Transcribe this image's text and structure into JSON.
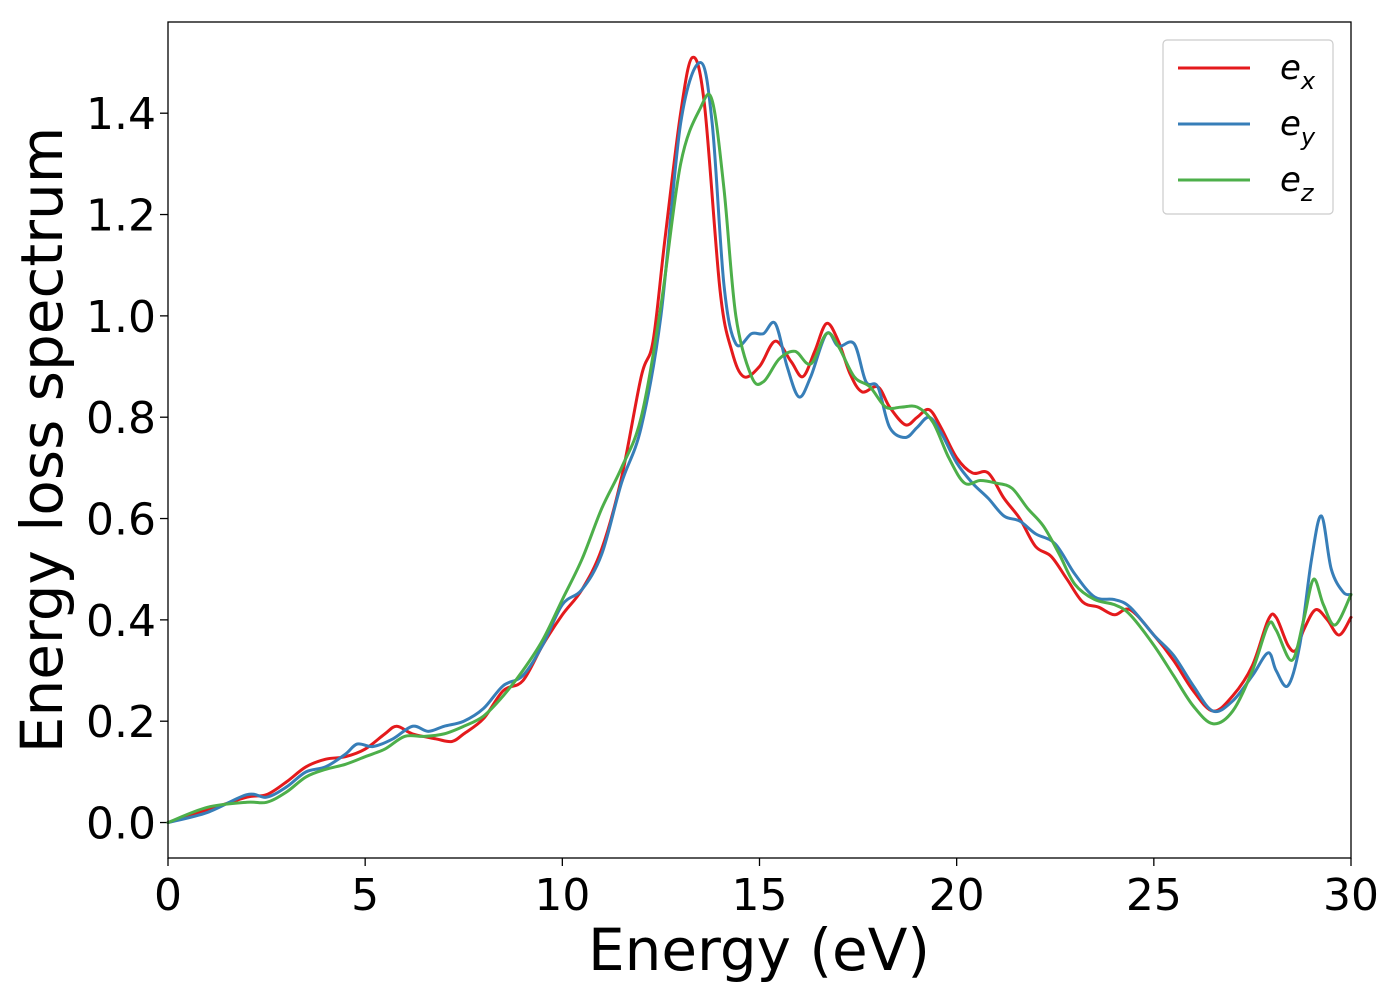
{
  "chart_data": {
    "type": "line",
    "xlabel": "Energy (eV)",
    "ylabel": "Energy loss spectrum",
    "xlim": [
      0,
      30
    ],
    "ylim": [
      -0.07,
      1.58
    ],
    "xticks": [
      0,
      5,
      10,
      15,
      20,
      25,
      30
    ],
    "xtick_labels": [
      "0",
      "5",
      "10",
      "15",
      "20",
      "25",
      "30"
    ],
    "yticks": [
      0.0,
      0.2,
      0.4,
      0.6,
      0.8,
      1.0,
      1.2,
      1.4
    ],
    "ytick_labels": [
      "0.0",
      "0.2",
      "0.4",
      "0.6",
      "0.8",
      "1.0",
      "1.2",
      "1.4"
    ],
    "grid": false,
    "legend_position": "top-right",
    "series": [
      {
        "name": "e_x",
        "label_base": "e",
        "label_sub": "x",
        "color": "#e41a1c",
        "points": [
          [
            0,
            0.0
          ],
          [
            1,
            0.025
          ],
          [
            2,
            0.05
          ],
          [
            2.5,
            0.055
          ],
          [
            3,
            0.08
          ],
          [
            3.5,
            0.11
          ],
          [
            4,
            0.125
          ],
          [
            4.5,
            0.13
          ],
          [
            5,
            0.145
          ],
          [
            5.5,
            0.175
          ],
          [
            5.8,
            0.19
          ],
          [
            6.2,
            0.175
          ],
          [
            6.8,
            0.165
          ],
          [
            7.2,
            0.16
          ],
          [
            7.5,
            0.175
          ],
          [
            8,
            0.205
          ],
          [
            8.5,
            0.26
          ],
          [
            9,
            0.28
          ],
          [
            9.5,
            0.35
          ],
          [
            10,
            0.41
          ],
          [
            10.5,
            0.46
          ],
          [
            11,
            0.54
          ],
          [
            11.5,
            0.68
          ],
          [
            12,
            0.88
          ],
          [
            12.3,
            0.95
          ],
          [
            12.6,
            1.15
          ],
          [
            13,
            1.4
          ],
          [
            13.3,
            1.51
          ],
          [
            13.6,
            1.42
          ],
          [
            14,
            1.05
          ],
          [
            14.3,
            0.93
          ],
          [
            14.6,
            0.88
          ],
          [
            15,
            0.9
          ],
          [
            15.4,
            0.95
          ],
          [
            15.8,
            0.91
          ],
          [
            16.1,
            0.88
          ],
          [
            16.4,
            0.93
          ],
          [
            16.7,
            0.985
          ],
          [
            17,
            0.95
          ],
          [
            17.3,
            0.885
          ],
          [
            17.6,
            0.85
          ],
          [
            18,
            0.86
          ],
          [
            18.3,
            0.82
          ],
          [
            18.7,
            0.785
          ],
          [
            19,
            0.8
          ],
          [
            19.3,
            0.815
          ],
          [
            19.6,
            0.78
          ],
          [
            20,
            0.72
          ],
          [
            20.4,
            0.69
          ],
          [
            20.8,
            0.69
          ],
          [
            21.2,
            0.64
          ],
          [
            21.6,
            0.6
          ],
          [
            22,
            0.545
          ],
          [
            22.4,
            0.525
          ],
          [
            22.8,
            0.48
          ],
          [
            23.2,
            0.435
          ],
          [
            23.6,
            0.425
          ],
          [
            24,
            0.41
          ],
          [
            24.4,
            0.42
          ],
          [
            25,
            0.37
          ],
          [
            25.5,
            0.32
          ],
          [
            26,
            0.26
          ],
          [
            26.5,
            0.22
          ],
          [
            27,
            0.25
          ],
          [
            27.5,
            0.31
          ],
          [
            27.9,
            0.4
          ],
          [
            28.1,
            0.405
          ],
          [
            28.4,
            0.35
          ],
          [
            28.6,
            0.34
          ],
          [
            28.8,
            0.38
          ],
          [
            29.1,
            0.42
          ],
          [
            29.4,
            0.4
          ],
          [
            29.7,
            0.37
          ],
          [
            30,
            0.405
          ]
        ]
      },
      {
        "name": "e_y",
        "label_base": "e",
        "label_sub": "y",
        "color": "#377eb8",
        "points": [
          [
            0,
            0.0
          ],
          [
            1,
            0.02
          ],
          [
            2,
            0.055
          ],
          [
            2.5,
            0.05
          ],
          [
            3,
            0.07
          ],
          [
            3.5,
            0.1
          ],
          [
            4,
            0.11
          ],
          [
            4.5,
            0.135
          ],
          [
            4.8,
            0.155
          ],
          [
            5.2,
            0.15
          ],
          [
            5.7,
            0.165
          ],
          [
            6.2,
            0.19
          ],
          [
            6.6,
            0.18
          ],
          [
            7,
            0.19
          ],
          [
            7.5,
            0.2
          ],
          [
            8,
            0.225
          ],
          [
            8.5,
            0.27
          ],
          [
            9,
            0.29
          ],
          [
            9.5,
            0.35
          ],
          [
            10,
            0.43
          ],
          [
            10.5,
            0.46
          ],
          [
            11,
            0.53
          ],
          [
            11.5,
            0.67
          ],
          [
            12,
            0.78
          ],
          [
            12.5,
            1.0
          ],
          [
            13,
            1.38
          ],
          [
            13.5,
            1.5
          ],
          [
            13.8,
            1.38
          ],
          [
            14.1,
            1.06
          ],
          [
            14.4,
            0.945
          ],
          [
            14.8,
            0.965
          ],
          [
            15.1,
            0.965
          ],
          [
            15.4,
            0.985
          ],
          [
            15.7,
            0.9
          ],
          [
            16,
            0.84
          ],
          [
            16.3,
            0.88
          ],
          [
            16.7,
            0.965
          ],
          [
            17,
            0.94
          ],
          [
            17.4,
            0.945
          ],
          [
            17.7,
            0.87
          ],
          [
            18,
            0.86
          ],
          [
            18.3,
            0.78
          ],
          [
            18.7,
            0.76
          ],
          [
            19,
            0.78
          ],
          [
            19.3,
            0.8
          ],
          [
            19.6,
            0.77
          ],
          [
            20,
            0.71
          ],
          [
            20.4,
            0.67
          ],
          [
            20.8,
            0.64
          ],
          [
            21.2,
            0.605
          ],
          [
            21.6,
            0.595
          ],
          [
            22,
            0.57
          ],
          [
            22.5,
            0.55
          ],
          [
            23,
            0.49
          ],
          [
            23.5,
            0.445
          ],
          [
            24,
            0.44
          ],
          [
            24.4,
            0.425
          ],
          [
            25,
            0.37
          ],
          [
            25.5,
            0.33
          ],
          [
            26,
            0.27
          ],
          [
            26.5,
            0.22
          ],
          [
            27,
            0.24
          ],
          [
            27.5,
            0.29
          ],
          [
            27.9,
            0.335
          ],
          [
            28.1,
            0.3
          ],
          [
            28.4,
            0.27
          ],
          [
            28.7,
            0.35
          ],
          [
            29,
            0.52
          ],
          [
            29.25,
            0.605
          ],
          [
            29.5,
            0.5
          ],
          [
            29.8,
            0.455
          ],
          [
            30,
            0.45
          ]
        ]
      },
      {
        "name": "e_z",
        "label_base": "e",
        "label_sub": "z",
        "color": "#4daf4a",
        "points": [
          [
            0,
            0.0
          ],
          [
            1,
            0.03
          ],
          [
            2,
            0.04
          ],
          [
            2.5,
            0.04
          ],
          [
            3,
            0.06
          ],
          [
            3.5,
            0.09
          ],
          [
            4,
            0.105
          ],
          [
            4.5,
            0.115
          ],
          [
            5,
            0.13
          ],
          [
            5.5,
            0.145
          ],
          [
            6,
            0.17
          ],
          [
            6.5,
            0.17
          ],
          [
            7,
            0.175
          ],
          [
            7.5,
            0.19
          ],
          [
            8,
            0.21
          ],
          [
            8.5,
            0.25
          ],
          [
            9,
            0.3
          ],
          [
            9.5,
            0.36
          ],
          [
            10,
            0.44
          ],
          [
            10.5,
            0.52
          ],
          [
            11,
            0.62
          ],
          [
            11.5,
            0.7
          ],
          [
            12,
            0.8
          ],
          [
            12.5,
            1.02
          ],
          [
            13,
            1.3
          ],
          [
            13.5,
            1.41
          ],
          [
            13.8,
            1.425
          ],
          [
            14.1,
            1.25
          ],
          [
            14.4,
            1.0
          ],
          [
            14.8,
            0.88
          ],
          [
            15.1,
            0.87
          ],
          [
            15.5,
            0.915
          ],
          [
            15.9,
            0.93
          ],
          [
            16.3,
            0.905
          ],
          [
            16.7,
            0.965
          ],
          [
            17,
            0.94
          ],
          [
            17.4,
            0.88
          ],
          [
            17.8,
            0.86
          ],
          [
            18.2,
            0.82
          ],
          [
            18.6,
            0.82
          ],
          [
            19,
            0.82
          ],
          [
            19.4,
            0.79
          ],
          [
            19.8,
            0.72
          ],
          [
            20.2,
            0.67
          ],
          [
            20.6,
            0.675
          ],
          [
            21,
            0.67
          ],
          [
            21.4,
            0.66
          ],
          [
            21.8,
            0.62
          ],
          [
            22.2,
            0.585
          ],
          [
            22.6,
            0.53
          ],
          [
            23,
            0.47
          ],
          [
            23.5,
            0.44
          ],
          [
            24,
            0.43
          ],
          [
            24.4,
            0.41
          ],
          [
            25,
            0.35
          ],
          [
            25.5,
            0.29
          ],
          [
            26,
            0.23
          ],
          [
            26.5,
            0.195
          ],
          [
            27,
            0.22
          ],
          [
            27.5,
            0.3
          ],
          [
            27.9,
            0.39
          ],
          [
            28.1,
            0.38
          ],
          [
            28.5,
            0.32
          ],
          [
            28.8,
            0.4
          ],
          [
            29.05,
            0.48
          ],
          [
            29.3,
            0.43
          ],
          [
            29.6,
            0.39
          ],
          [
            30,
            0.45
          ]
        ]
      }
    ]
  }
}
